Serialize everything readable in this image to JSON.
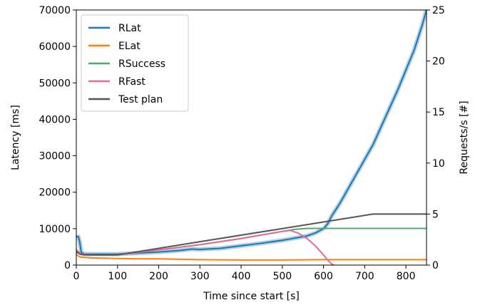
{
  "chart_data": {
    "type": "line",
    "xlabel": "Time since start [s]",
    "ylabel": "Latency [ms]",
    "y2label": "Requests/s [#]",
    "xlim": [
      0,
      850
    ],
    "ylim": [
      0,
      70000
    ],
    "y2lim": [
      0,
      25
    ],
    "xticks": [
      0,
      100,
      200,
      300,
      400,
      500,
      600,
      700,
      800
    ],
    "yticks": [
      0,
      10000,
      20000,
      30000,
      40000,
      50000,
      60000,
      70000
    ],
    "y2ticks": [
      0,
      5,
      10,
      15,
      20,
      25
    ],
    "legend_position": "top-left",
    "series": [
      {
        "name": "RLat",
        "axis": "left",
        "color": "#1f77b4",
        "x": [
          0,
          5,
          8,
          12,
          20,
          50,
          100,
          150,
          200,
          250,
          280,
          300,
          350,
          400,
          450,
          500,
          520,
          540,
          560,
          580,
          600,
          610,
          620,
          640,
          660,
          680,
          700,
          720,
          740,
          760,
          780,
          800,
          820,
          840,
          850
        ],
        "y": [
          7800,
          7800,
          6500,
          3500,
          3000,
          3000,
          3000,
          3300,
          3600,
          4000,
          4400,
          4300,
          4600,
          5300,
          6000,
          6800,
          7200,
          7600,
          8000,
          8800,
          10000,
          11300,
          13500,
          17000,
          21000,
          25000,
          29000,
          33000,
          38000,
          43000,
          48000,
          53500,
          59000,
          66000,
          70000
        ]
      },
      {
        "name": "ELat",
        "axis": "left",
        "color": "#ff7f0e",
        "x": [
          0,
          5,
          10,
          30,
          100,
          150,
          200,
          300,
          400,
          500,
          600,
          700,
          800,
          850
        ],
        "y": [
          3000,
          2500,
          2200,
          2000,
          1800,
          1700,
          1700,
          1500,
          1400,
          1400,
          1500,
          1500,
          1500,
          1500
        ]
      },
      {
        "name": "RSuccess",
        "axis": "right",
        "color": "#55a868",
        "x": [
          0,
          10,
          30,
          100,
          200,
          300,
          400,
          500,
          530,
          560,
          600,
          700,
          800,
          850
        ],
        "y": [
          1.5,
          1.1,
          1.0,
          1.0,
          1.5,
          2.0,
          2.6,
          3.3,
          3.5,
          3.6,
          3.6,
          3.6,
          3.6,
          3.6
        ]
      },
      {
        "name": "RFast",
        "axis": "right",
        "color": "#e66b8f",
        "x": [
          0,
          10,
          30,
          100,
          200,
          300,
          400,
          500,
          520,
          540,
          560,
          580,
          600,
          610,
          620,
          625
        ],
        "y": [
          1.5,
          1.1,
          1.0,
          1.0,
          1.5,
          2.0,
          2.6,
          3.3,
          3.4,
          3.1,
          2.6,
          1.9,
          1.0,
          0.5,
          0.1,
          0
        ]
      },
      {
        "name": "Test plan",
        "axis": "right",
        "color": "#555555",
        "x": [
          0,
          10,
          20,
          100,
          720,
          850
        ],
        "y": [
          1.3,
          1.05,
          1.0,
          1.0,
          5.0,
          5.0
        ]
      }
    ]
  }
}
